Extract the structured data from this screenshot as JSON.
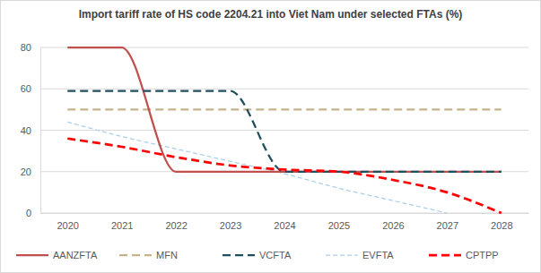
{
  "chart_data": {
    "type": "line",
    "title": "Import tariff rate of HS code 2204.21 into Viet Nam under selected FTAs (%)",
    "categories": [
      "2020",
      "2021",
      "2022",
      "2023",
      "2024",
      "2025",
      "2026",
      "2027",
      "2028"
    ],
    "series": [
      {
        "name": "AANZFTA",
        "color": "#c0504d",
        "line_style": "solid",
        "values": [
          80,
          80,
          20,
          20,
          20,
          20,
          20,
          20,
          20
        ]
      },
      {
        "name": "MFN",
        "color": "#c4b48a",
        "line_style": "dashed",
        "values": [
          50,
          50,
          50,
          50,
          50,
          50,
          50,
          50,
          50
        ]
      },
      {
        "name": "VCFTA",
        "color": "#1f4e5f",
        "line_style": "dashed",
        "values": [
          59,
          59,
          59,
          59,
          20,
          20,
          20,
          20,
          20
        ]
      },
      {
        "name": "EVFTA",
        "color": "#a9d0e8",
        "line_style": "dashed",
        "values": [
          44,
          37,
          31,
          25,
          19,
          12,
          6,
          0,
          null
        ]
      },
      {
        "name": "CPTPP",
        "color": "#ff0000",
        "line_style": "dashed",
        "values": [
          36,
          32,
          27,
          23,
          21,
          20,
          16,
          10,
          0
        ]
      }
    ],
    "ylim": [
      0,
      80
    ],
    "yticks": [
      0,
      20,
      40,
      60,
      80
    ],
    "grid": true,
    "legend": "bottom"
  }
}
